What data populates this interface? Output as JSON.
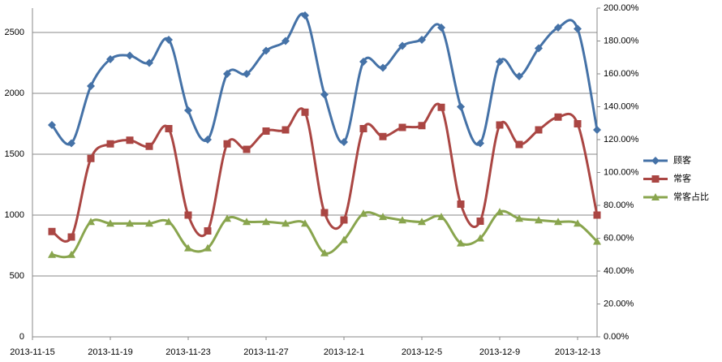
{
  "chart_data": {
    "type": "line",
    "categories": [
      "2013-11-15",
      null,
      null,
      null,
      "2013-11-19",
      null,
      null,
      null,
      "2013-11-23",
      null,
      null,
      null,
      "2013-11-27",
      null,
      null,
      null,
      "2013-12-1",
      null,
      null,
      null,
      "2013-12-5",
      null,
      null,
      null,
      "2013-12-9",
      null,
      null,
      null,
      "2013-12-13",
      null
    ],
    "series": [
      {
        "name": "顾客",
        "color": "#4572a7",
        "marker": "diamond",
        "values": [
          null,
          1740,
          1590,
          2060,
          2280,
          2310,
          2250,
          2440,
          1860,
          1620,
          2160,
          2160,
          2350,
          2430,
          2640,
          1990,
          1600,
          2260,
          2210,
          2390,
          2440,
          2540,
          1890,
          1590,
          2260,
          2140,
          2370,
          2540,
          2530,
          1700
        ]
      },
      {
        "name": "常客",
        "color": "#aa4643",
        "marker": "square",
        "values": [
          null,
          865,
          820,
          1465,
          1585,
          1615,
          1565,
          1710,
          1000,
          870,
          1585,
          1540,
          1690,
          1700,
          1845,
          1020,
          960,
          1710,
          1645,
          1720,
          1735,
          1885,
          1090,
          950,
          1740,
          1580,
          1700,
          1805,
          1750,
          1000
        ]
      },
      {
        "name": "常客占比",
        "color": "#89a54e",
        "marker": "triangle",
        "axis": "y2",
        "values": [
          null,
          50,
          50,
          70,
          69,
          69,
          69,
          70,
          54,
          54,
          72,
          70,
          70,
          69,
          69,
          51,
          59,
          75,
          73,
          71,
          70,
          73,
          57,
          60,
          76,
          72,
          71,
          70,
          69,
          58
        ]
      }
    ],
    "ylim": [
      0,
      2700
    ],
    "yticks": [
      0,
      500,
      1000,
      1500,
      2000,
      2500
    ],
    "y2lim": [
      0,
      200
    ],
    "y2ticks": [
      {
        "value": 0,
        "label": "0.00%"
      },
      {
        "value": 20,
        "label": "20.00%"
      },
      {
        "value": 40,
        "label": "40.00%"
      },
      {
        "value": 60,
        "label": "60.00%"
      },
      {
        "value": 80,
        "label": "80.00%"
      },
      {
        "value": 100,
        "label": "100.00%"
      },
      {
        "value": 120,
        "label": "120.00%"
      },
      {
        "value": 140,
        "label": "140.00%"
      },
      {
        "value": 160,
        "label": "160.00%"
      },
      {
        "value": 180,
        "label": "180.00%"
      },
      {
        "value": 200,
        "label": "200.00%"
      }
    ],
    "grid": true,
    "legend": "right",
    "smooth": true
  }
}
